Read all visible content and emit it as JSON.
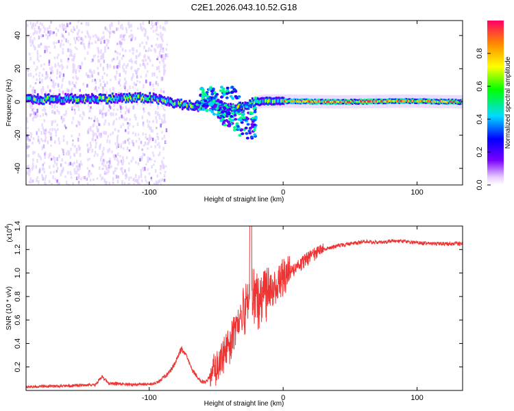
{
  "title": "C2E1.2026.043.10.52.G18",
  "chart_data": [
    {
      "type": "heatmap",
      "xlabel": "Height of straight line (km)",
      "ylabel": "Frequency (Hz)",
      "xlim": [
        -192,
        134
      ],
      "ylim": [
        -50,
        49
      ],
      "xticks": [
        -100,
        0,
        100
      ],
      "xtick_labels": [
        "-100",
        "0",
        "100"
      ],
      "yticks": [
        -40,
        -20,
        0,
        20,
        40
      ],
      "ytick_labels": [
        "-40",
        "-20",
        "0",
        "20",
        "40"
      ],
      "band_center": [
        {
          "x": -192,
          "f": 1.5
        },
        {
          "x": -140,
          "f": 2
        },
        {
          "x": -100,
          "f": 2.5
        },
        {
          "x": -80,
          "f": -1
        },
        {
          "x": -65,
          "f": -3
        },
        {
          "x": -55,
          "f": 1
        },
        {
          "x": -45,
          "f": -3
        },
        {
          "x": -35,
          "f": -4
        },
        {
          "x": -25,
          "f": -1
        },
        {
          "x": -15,
          "f": 0.5
        },
        {
          "x": 0,
          "f": 0.5
        },
        {
          "x": 40,
          "f": 0
        },
        {
          "x": 90,
          "f": 0.5
        },
        {
          "x": 134,
          "f": 0
        }
      ],
      "colorbar": {
        "label": "Normalized spectral amplitude",
        "range": [
          0,
          1
        ],
        "ticks": [
          0.0,
          0.2,
          0.4,
          0.6,
          0.8
        ],
        "tick_labels": [
          "0.0",
          "0.2",
          "0.4",
          "0.6",
          "0.8"
        ]
      }
    },
    {
      "type": "line",
      "xlabel": "Height of straight line (km)",
      "ylabel": "SNR (10 * v/v)",
      "exponent_label": "(x10",
      "exponent": "4",
      "exponent_close": ")",
      "xlim": [
        -192,
        134
      ],
      "ylim": [
        0,
        1.4
      ],
      "xticks": [
        -100,
        0,
        100
      ],
      "xtick_labels": [
        "-100",
        "0",
        "100"
      ],
      "yticks": [
        0.2,
        0.4,
        0.6,
        0.8,
        1.0,
        1.2,
        1.4
      ],
      "ytick_labels": [
        "0.2",
        "0.4",
        "0.6",
        "0.8",
        "1.0",
        "1.2",
        "1.4"
      ],
      "series": [
        {
          "name": "SNR",
          "color": "#ee3333",
          "x": [
            -192,
            -160,
            -140,
            -135,
            -130,
            -110,
            -95,
            -85,
            -80,
            -76,
            -72,
            -68,
            -62,
            -58,
            -52,
            -46,
            -40,
            -34,
            -28,
            -24,
            -20,
            -16,
            -10,
            -4,
            0,
            5,
            10,
            15,
            20,
            25,
            30,
            40,
            50,
            60,
            70,
            80,
            90,
            100,
            110,
            120,
            134
          ],
          "y": [
            0.03,
            0.04,
            0.05,
            0.12,
            0.06,
            0.05,
            0.06,
            0.15,
            0.25,
            0.35,
            0.28,
            0.18,
            0.08,
            0.07,
            0.16,
            0.26,
            0.4,
            0.55,
            0.7,
            0.85,
            0.78,
            0.82,
            0.88,
            0.95,
            0.98,
            1.0,
            1.05,
            1.1,
            1.14,
            1.18,
            1.2,
            1.23,
            1.25,
            1.27,
            1.26,
            1.27,
            1.27,
            1.26,
            1.25,
            1.25,
            1.25
          ]
        }
      ]
    }
  ],
  "colors": {
    "line": "#ee3333",
    "frame": "#000000"
  }
}
